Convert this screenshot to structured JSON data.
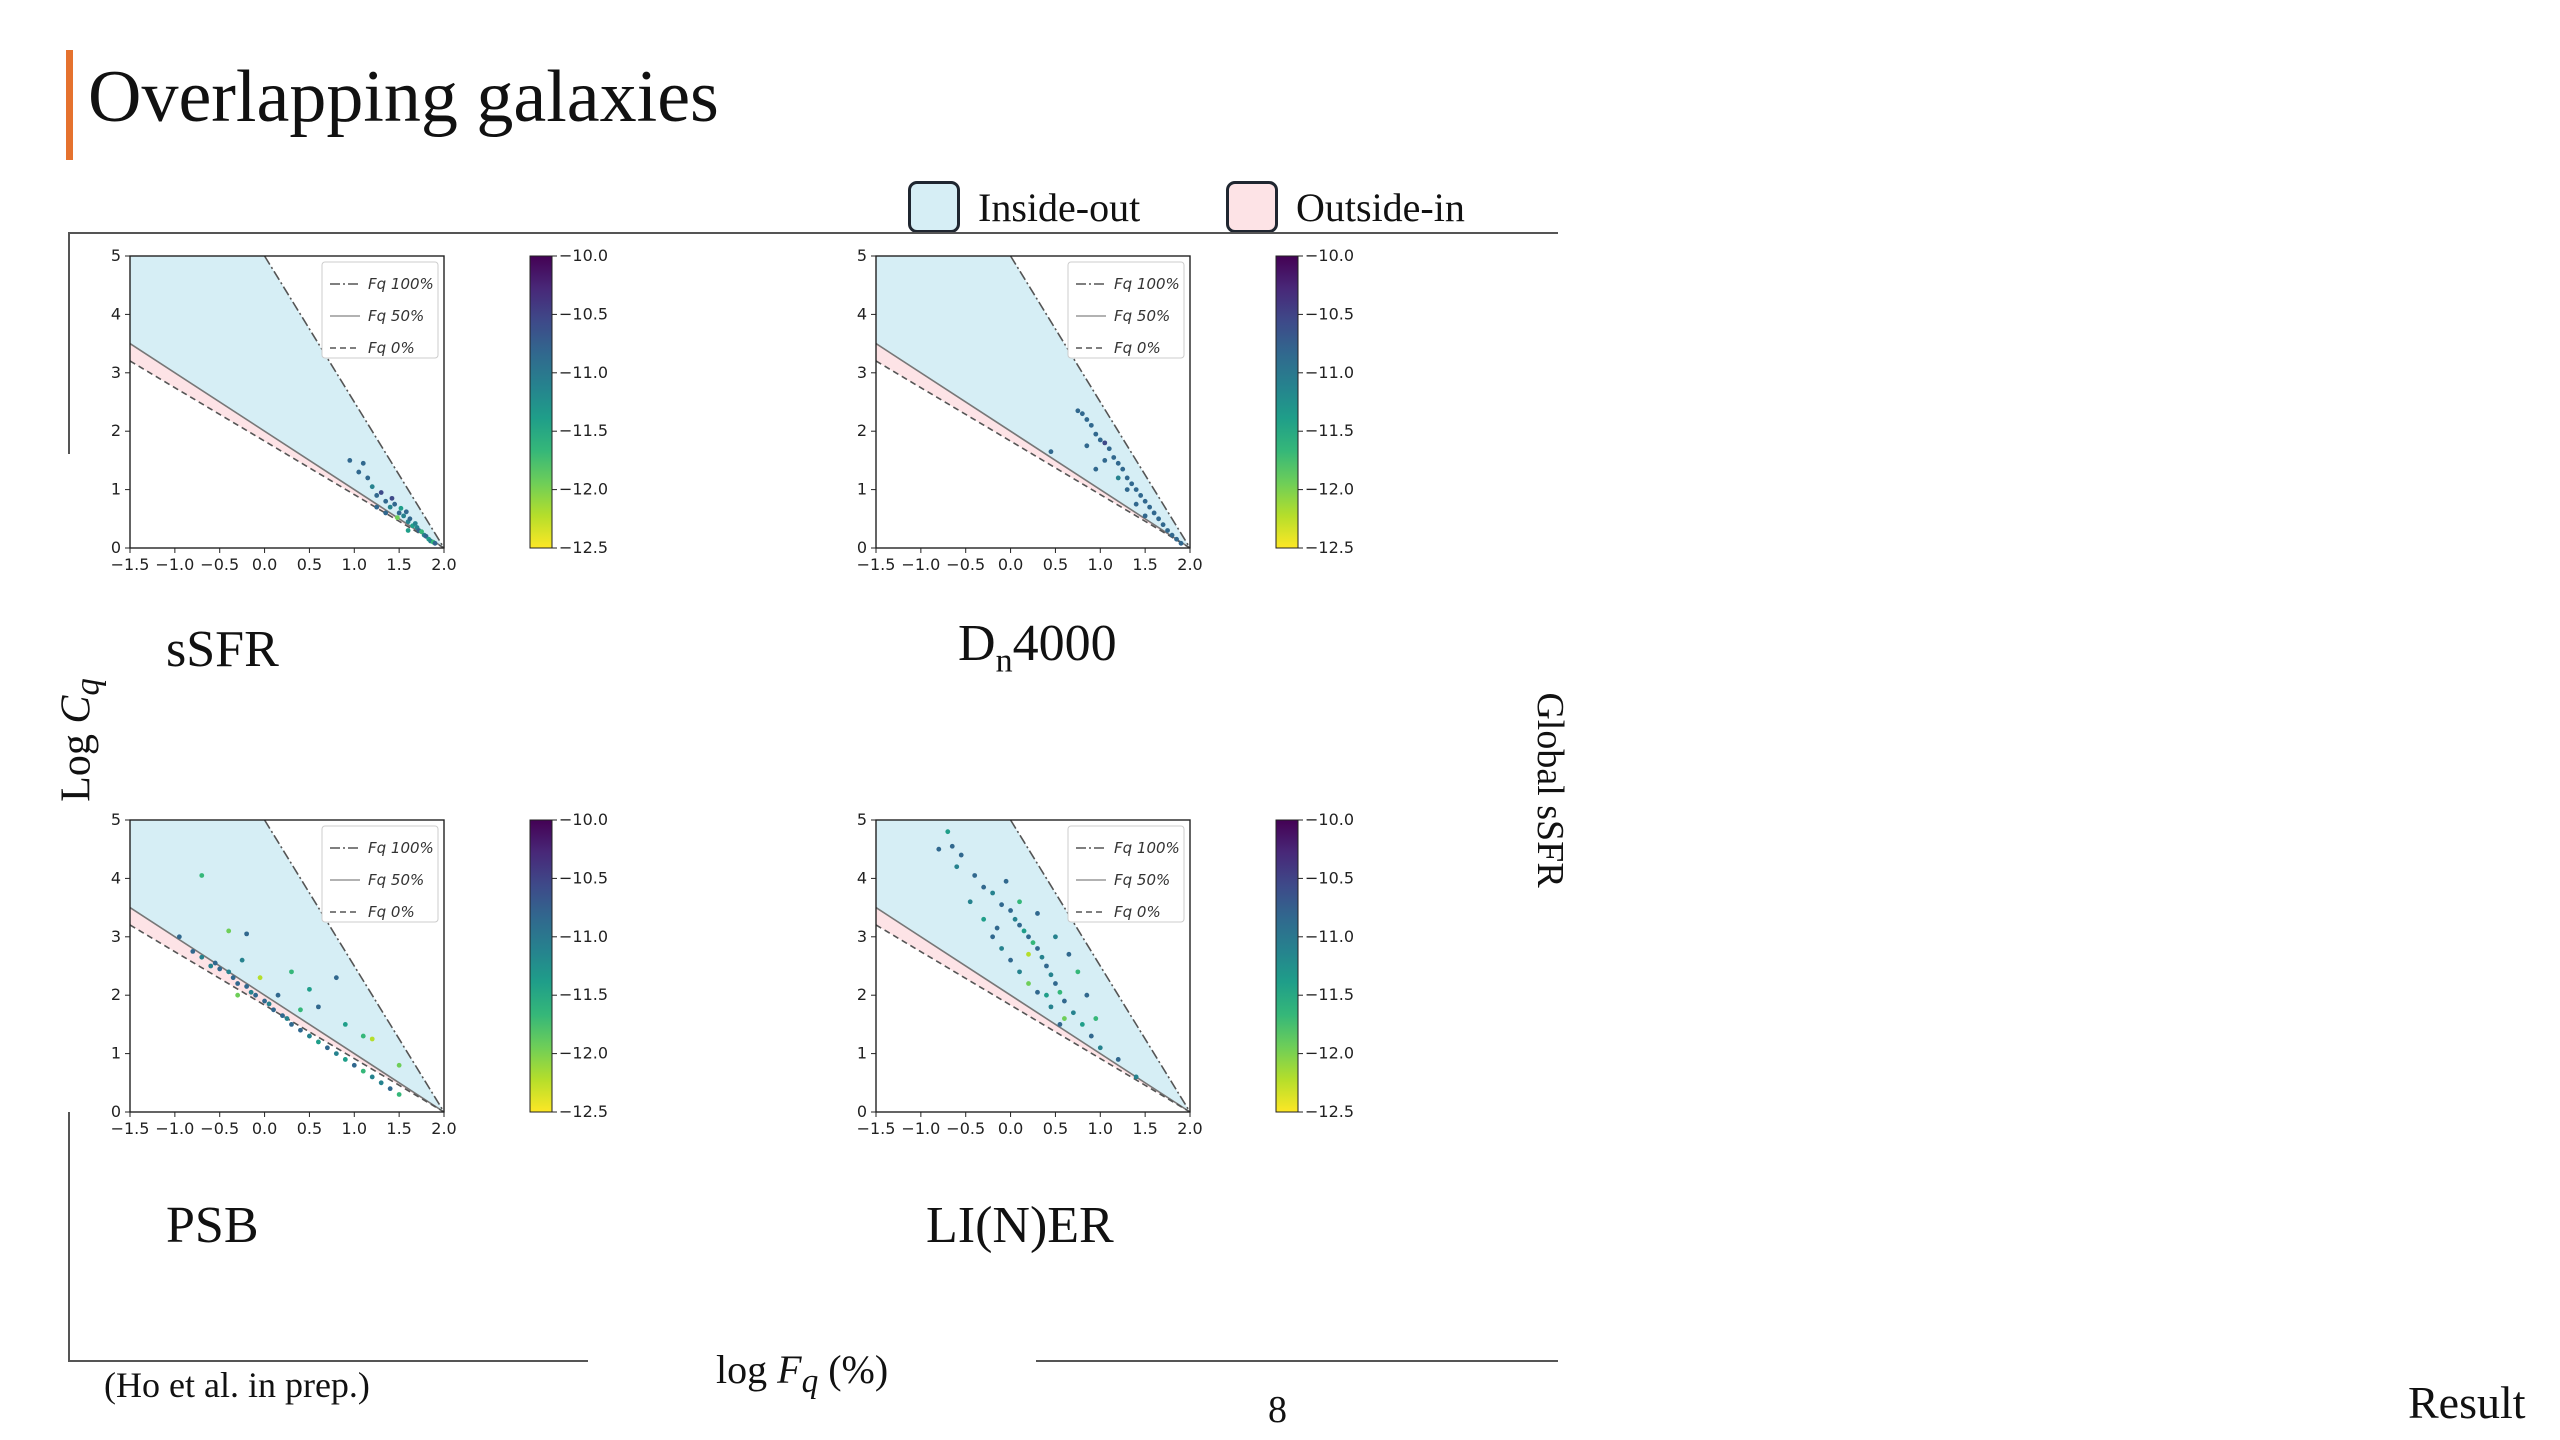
{
  "slide": {
    "title": "Overlapping galaxies",
    "legend": [
      {
        "label": "Inside-out",
        "color": "#d6eef5"
      },
      {
        "label": "Outside-in",
        "color": "#fde3e6"
      }
    ],
    "y_axis_label": "Log C_q",
    "x_axis_label": "log F_q (%)",
    "colorbar_label": "Global sSFR",
    "citation": "(Ho et al. in prep.)",
    "page_number": "8",
    "section": "Result"
  },
  "colors": {
    "accent": "#e5722e",
    "inside_out": "#d6eef5",
    "outside_in": "#fde3e6"
  },
  "chart_data": [
    {
      "type": "scatter",
      "panel_label": "sSFR",
      "xlim": [
        -1.5,
        2.0
      ],
      "ylim": [
        0,
        5
      ],
      "xticks": [
        "−1.5",
        "−1.0",
        "−0.5",
        "0.0",
        "0.5",
        "1.0",
        "1.5",
        "2.0"
      ],
      "yticks": [
        "0",
        "1",
        "2",
        "3",
        "4",
        "5"
      ],
      "lines": [
        {
          "label": "F_q100%",
          "style": "dashdot"
        },
        {
          "label": "F_q50%",
          "style": "solid"
        },
        {
          "label": "F_q0%",
          "style": "dashed"
        }
      ],
      "colorbar": {
        "range": [
          -12.5,
          -10.0
        ],
        "ticks": [
          "−10.0",
          "−10.5",
          "−11.0",
          "−11.5",
          "−12.0",
          "−12.5"
        ]
      },
      "points": [
        [
          0.95,
          1.5,
          -10.9
        ],
        [
          1.05,
          1.3,
          -10.8
        ],
        [
          1.1,
          1.45,
          -10.7
        ],
        [
          1.15,
          1.2,
          -10.9
        ],
        [
          1.2,
          1.05,
          -11.0
        ],
        [
          1.25,
          0.9,
          -10.8
        ],
        [
          1.3,
          0.95,
          -10.6
        ],
        [
          1.35,
          0.8,
          -10.9
        ],
        [
          1.4,
          0.7,
          -11.0
        ],
        [
          1.45,
          0.75,
          -10.7
        ],
        [
          1.5,
          0.6,
          -10.8
        ],
        [
          1.55,
          0.55,
          -11.2
        ],
        [
          1.6,
          0.45,
          -11.0
        ],
        [
          1.62,
          0.5,
          -10.9
        ],
        [
          1.65,
          0.38,
          -11.4
        ],
        [
          1.7,
          0.35,
          -11.1
        ],
        [
          1.72,
          0.3,
          -10.8
        ],
        [
          1.75,
          0.28,
          -11.6
        ],
        [
          1.78,
          0.22,
          -11.0
        ],
        [
          1.8,
          0.2,
          -10.9
        ],
        [
          1.83,
          0.15,
          -11.3
        ],
        [
          1.85,
          0.12,
          -11.0
        ],
        [
          1.88,
          0.1,
          -11.8
        ],
        [
          1.9,
          0.08,
          -10.9
        ],
        [
          1.42,
          0.85,
          -10.6
        ],
        [
          1.52,
          0.68,
          -11.3
        ],
        [
          1.58,
          0.62,
          -10.7
        ],
        [
          1.68,
          0.42,
          -11.2
        ],
        [
          1.48,
          0.52,
          -11.9
        ],
        [
          1.35,
          0.6,
          -10.8
        ],
        [
          1.25,
          0.7,
          -10.9
        ],
        [
          1.6,
          0.3,
          -11.5
        ]
      ]
    },
    {
      "type": "scatter",
      "panel_label": "Dn4000",
      "xlim": [
        -1.5,
        2.0
      ],
      "ylim": [
        0,
        5
      ],
      "xticks": [
        "−1.5",
        "−1.0",
        "−0.5",
        "0.0",
        "0.5",
        "1.0",
        "1.5",
        "2.0"
      ],
      "yticks": [
        "0",
        "1",
        "2",
        "3",
        "4",
        "5"
      ],
      "lines": [
        {
          "label": "F_q100%",
          "style": "dashdot"
        },
        {
          "label": "F_q50%",
          "style": "solid"
        },
        {
          "label": "F_q0%",
          "style": "dashed"
        }
      ],
      "colorbar": {
        "range": [
          -12.5,
          -10.0
        ],
        "ticks": [
          "−10.0",
          "−10.5",
          "−11.0",
          "−11.5",
          "−12.0",
          "−12.5"
        ]
      },
      "points": [
        [
          0.75,
          2.35,
          -10.8
        ],
        [
          0.8,
          2.3,
          -10.9
        ],
        [
          0.85,
          2.2,
          -10.7
        ],
        [
          0.9,
          2.1,
          -10.8
        ],
        [
          0.95,
          1.95,
          -10.9
        ],
        [
          1.0,
          1.85,
          -10.8
        ],
        [
          1.05,
          1.8,
          -10.6
        ],
        [
          1.1,
          1.7,
          -10.9
        ],
        [
          1.15,
          1.55,
          -10.8
        ],
        [
          1.2,
          1.45,
          -10.9
        ],
        [
          1.25,
          1.35,
          -10.7
        ],
        [
          1.3,
          1.2,
          -10.8
        ],
        [
          1.35,
          1.1,
          -10.9
        ],
        [
          1.4,
          1.0,
          -10.8
        ],
        [
          1.45,
          0.9,
          -10.7
        ],
        [
          1.5,
          0.8,
          -10.9
        ],
        [
          1.55,
          0.7,
          -10.8
        ],
        [
          1.6,
          0.6,
          -10.9
        ],
        [
          1.65,
          0.5,
          -10.8
        ],
        [
          1.7,
          0.4,
          -10.9
        ],
        [
          1.75,
          0.3,
          -10.8
        ],
        [
          1.8,
          0.22,
          -10.7
        ],
        [
          1.85,
          0.15,
          -10.9
        ],
        [
          1.9,
          0.08,
          -10.8
        ],
        [
          0.45,
          1.65,
          -10.9
        ],
        [
          0.85,
          1.75,
          -10.8
        ],
        [
          1.05,
          1.5,
          -10.9
        ],
        [
          1.3,
          1.0,
          -10.7
        ],
        [
          1.5,
          0.55,
          -10.8
        ],
        [
          1.2,
          1.2,
          -11.0
        ],
        [
          0.95,
          1.35,
          -10.8
        ],
        [
          1.4,
          0.75,
          -10.9
        ]
      ]
    },
    {
      "type": "scatter",
      "panel_label": "PSB",
      "xlim": [
        -1.5,
        2.0
      ],
      "ylim": [
        0,
        5
      ],
      "xticks": [
        "−1.5",
        "−1.0",
        "−0.5",
        "0.0",
        "0.5",
        "1.0",
        "1.5",
        "2.0"
      ],
      "yticks": [
        "0",
        "1",
        "2",
        "3",
        "4",
        "5"
      ],
      "lines": [
        {
          "label": "F_q100%",
          "style": "dashdot"
        },
        {
          "label": "F_q50%",
          "style": "solid"
        },
        {
          "label": "F_q0%",
          "style": "dashed"
        }
      ],
      "colorbar": {
        "range": [
          -12.5,
          -10.0
        ],
        "ticks": [
          "−10.0",
          "−10.5",
          "−11.0",
          "−11.5",
          "−12.0",
          "−12.5"
        ]
      },
      "points": [
        [
          -0.7,
          4.05,
          -11.8
        ],
        [
          -0.95,
          3.0,
          -10.8
        ],
        [
          -0.8,
          2.75,
          -10.9
        ],
        [
          -0.7,
          2.65,
          -11.0
        ],
        [
          -0.55,
          2.55,
          -10.8
        ],
        [
          -0.5,
          2.45,
          -10.9
        ],
        [
          -0.4,
          2.4,
          -11.0
        ],
        [
          -0.35,
          2.3,
          -10.8
        ],
        [
          -0.3,
          2.2,
          -10.7
        ],
        [
          -0.2,
          2.15,
          -10.9
        ],
        [
          -0.15,
          2.05,
          -11.0
        ],
        [
          -0.1,
          2.0,
          -10.8
        ],
        [
          0.0,
          1.9,
          -10.9
        ],
        [
          0.05,
          1.85,
          -11.2
        ],
        [
          0.1,
          1.75,
          -10.8
        ],
        [
          0.2,
          1.65,
          -10.9
        ],
        [
          0.25,
          1.6,
          -11.0
        ],
        [
          0.3,
          1.5,
          -10.8
        ],
        [
          0.4,
          1.4,
          -10.9
        ],
        [
          0.5,
          1.3,
          -11.0
        ],
        [
          0.6,
          1.2,
          -11.3
        ],
        [
          0.7,
          1.1,
          -10.9
        ],
        [
          0.8,
          1.0,
          -11.0
        ],
        [
          0.9,
          0.9,
          -11.5
        ],
        [
          1.0,
          0.8,
          -10.9
        ],
        [
          1.1,
          0.7,
          -11.8
        ],
        [
          1.2,
          0.6,
          -11.0
        ],
        [
          1.3,
          0.5,
          -11.2
        ],
        [
          1.4,
          0.4,
          -10.9
        ],
        [
          1.5,
          0.3,
          -11.6
        ],
        [
          -0.4,
          3.1,
          -12.0
        ],
        [
          -0.2,
          3.05,
          -10.9
        ],
        [
          0.3,
          2.4,
          -11.8
        ],
        [
          0.5,
          2.1,
          -11.4
        ],
        [
          0.8,
          2.3,
          -10.7
        ],
        [
          1.1,
          1.3,
          -11.6
        ],
        [
          0.6,
          1.8,
          -10.8
        ],
        [
          1.2,
          1.25,
          -12.1
        ],
        [
          1.5,
          0.8,
          -11.9
        ],
        [
          -0.6,
          2.5,
          -11.2
        ],
        [
          -0.3,
          2.0,
          -12.0
        ],
        [
          0.15,
          2.0,
          -10.9
        ],
        [
          -0.05,
          2.3,
          -12.2
        ],
        [
          0.4,
          1.75,
          -11.7
        ],
        [
          0.9,
          1.5,
          -11.5
        ],
        [
          -0.25,
          2.6,
          -11.0
        ]
      ]
    },
    {
      "type": "scatter",
      "panel_label": "LI(N)ER",
      "xlim": [
        -1.5,
        2.0
      ],
      "ylim": [
        0,
        5
      ],
      "xticks": [
        "−1.5",
        "−1.0",
        "−0.5",
        "0.0",
        "0.5",
        "1.0",
        "1.5",
        "2.0"
      ],
      "yticks": [
        "0",
        "1",
        "2",
        "3",
        "4",
        "5"
      ],
      "lines": [
        {
          "label": "F_q100%",
          "style": "dashdot"
        },
        {
          "label": "F_q50%",
          "style": "solid"
        },
        {
          "label": "F_q0%",
          "style": "dashed"
        }
      ],
      "colorbar": {
        "range": [
          -12.5,
          -10.0
        ],
        "ticks": [
          "−10.0",
          "−10.5",
          "−11.0",
          "−11.5",
          "−12.0",
          "−12.5"
        ]
      },
      "points": [
        [
          -0.7,
          4.8,
          -11.5
        ],
        [
          -0.8,
          4.5,
          -10.9
        ],
        [
          -0.65,
          4.55,
          -10.8
        ],
        [
          -0.55,
          4.4,
          -10.9
        ],
        [
          -0.6,
          4.2,
          -11.2
        ],
        [
          -0.4,
          4.05,
          -10.8
        ],
        [
          -0.3,
          3.85,
          -10.9
        ],
        [
          -0.2,
          3.75,
          -11.0
        ],
        [
          -0.1,
          3.55,
          -10.8
        ],
        [
          0.0,
          3.45,
          -10.9
        ],
        [
          0.05,
          3.3,
          -11.0
        ],
        [
          0.1,
          3.2,
          -10.8
        ],
        [
          0.15,
          3.1,
          -11.3
        ],
        [
          0.2,
          3.0,
          -10.9
        ],
        [
          0.25,
          2.9,
          -11.6
        ],
        [
          0.3,
          2.8,
          -10.8
        ],
        [
          0.35,
          2.65,
          -11.0
        ],
        [
          0.4,
          2.5,
          -10.9
        ],
        [
          0.45,
          2.35,
          -11.2
        ],
        [
          0.5,
          2.2,
          -10.8
        ],
        [
          0.55,
          2.05,
          -11.8
        ],
        [
          0.6,
          1.9,
          -10.9
        ],
        [
          0.7,
          1.7,
          -11.0
        ],
        [
          0.8,
          1.5,
          -11.4
        ],
        [
          0.9,
          1.3,
          -10.9
        ],
        [
          1.0,
          1.1,
          -11.0
        ],
        [
          1.2,
          0.9,
          -10.8
        ],
        [
          1.4,
          0.6,
          -11.2
        ],
        [
          -0.2,
          3.0,
          -10.8
        ],
        [
          -0.1,
          2.8,
          -11.0
        ],
        [
          0.0,
          2.6,
          -10.9
        ],
        [
          0.1,
          2.4,
          -11.2
        ],
        [
          0.2,
          2.2,
          -11.9
        ],
        [
          0.3,
          2.05,
          -10.8
        ],
        [
          0.45,
          1.8,
          -11.0
        ],
        [
          0.6,
          1.6,
          -12.0
        ],
        [
          -0.3,
          3.3,
          -11.3
        ],
        [
          -0.15,
          3.15,
          -10.8
        ],
        [
          0.1,
          3.6,
          -11.7
        ],
        [
          0.3,
          3.4,
          -10.9
        ],
        [
          0.5,
          3.0,
          -11.1
        ],
        [
          0.65,
          2.7,
          -10.8
        ],
        [
          0.75,
          2.4,
          -11.6
        ],
        [
          0.85,
          2.0,
          -10.9
        ],
        [
          -0.45,
          3.6,
          -11.0
        ],
        [
          0.2,
          2.7,
          -12.1
        ],
        [
          0.4,
          2.0,
          -11.4
        ],
        [
          0.55,
          1.5,
          -10.9
        ],
        [
          0.95,
          1.6,
          -11.8
        ],
        [
          -0.05,
          3.95,
          -10.8
        ]
      ]
    }
  ]
}
